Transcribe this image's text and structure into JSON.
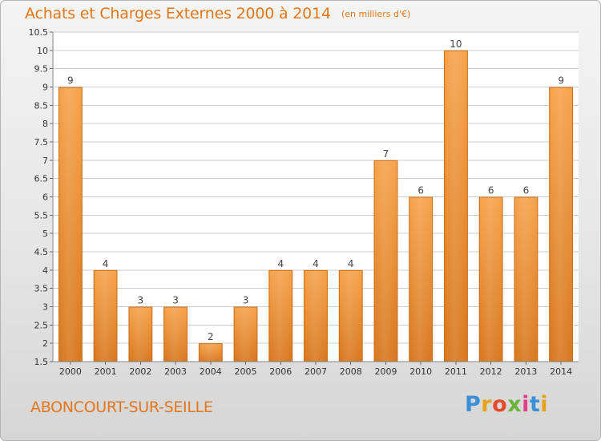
{
  "header": {
    "title": "Achats et Charges Externes 2000 à 2014",
    "subtitle": "(en milliers d'€)"
  },
  "footer": {
    "place": "ABONCOURT-SUR-SEILLE",
    "logo_text": "Proxiti"
  },
  "colors": {
    "bar": "#f39a40",
    "bar_dark": "#d87a22",
    "text_accent": "#e4761b",
    "grid": "#cccccc"
  },
  "chart_data": {
    "type": "bar",
    "categories": [
      "2000",
      "2001",
      "2002",
      "2003",
      "2004",
      "2005",
      "2006",
      "2007",
      "2008",
      "2009",
      "2010",
      "2011",
      "2012",
      "2013",
      "2014"
    ],
    "values": [
      9,
      4,
      3,
      3,
      2,
      3,
      4,
      4,
      4,
      7,
      6,
      10,
      6,
      6,
      9
    ],
    "data_labels": [
      "9",
      "4",
      "3",
      "3",
      "2",
      "3",
      "4",
      "4",
      "4",
      "7",
      "6",
      "10",
      "6",
      "6",
      "9"
    ],
    "title": "Achats et Charges Externes 2000 à 2014",
    "subtitle": "(en milliers d'€)",
    "xlabel": "",
    "ylabel": "",
    "ylim": [
      1.5,
      10.5
    ],
    "yticks": [
      "1.5",
      "2",
      "2.5",
      "3",
      "3.5",
      "4",
      "4.5",
      "5",
      "5.5",
      "6",
      "6.5",
      "7",
      "7.5",
      "8",
      "8.5",
      "9",
      "9.5",
      "10",
      "10.5"
    ],
    "grid": true,
    "legend": "none"
  }
}
